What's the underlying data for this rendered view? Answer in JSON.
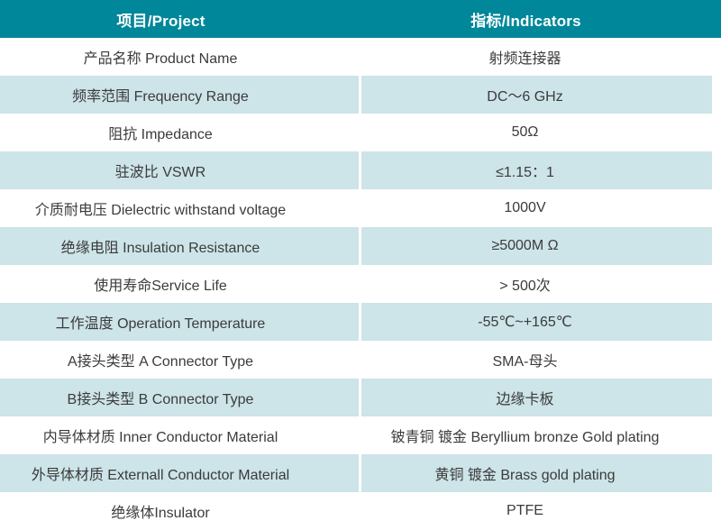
{
  "table": {
    "header": {
      "project": "项目/Project",
      "indicators": "指标/Indicators"
    },
    "rows": [
      {
        "project": "产品名称 Product Name",
        "indicator": "射频连接器"
      },
      {
        "project": "频率范围 Frequency Range",
        "indicator": "DC～6 GHz"
      },
      {
        "project": "阻抗 Impedance",
        "indicator": "50Ω"
      },
      {
        "project": "驻波比 VSWR",
        "indicator": "≤1.15：1"
      },
      {
        "project": "介质耐电压 Dielectric withstand voltage",
        "indicator": "1000V"
      },
      {
        "project": "绝缘电阻 Insulation Resistance",
        "indicator": "≥5000M Ω"
      },
      {
        "project": "使用寿命Service Life",
        "indicator": "> 500次"
      },
      {
        "project": "工作温度 Operation Temperature",
        "indicator": "-55℃~+165℃"
      },
      {
        "project": "A接头类型 A Connector Type",
        "indicator": "SMA-母头"
      },
      {
        "project": "B接头类型 B Connector Type",
        "indicator": "边缘卡板"
      },
      {
        "project": "内导体材质 Inner Conductor Material",
        "indicator": "铍青铜 镀金 Beryllium bronze Gold plating"
      },
      {
        "project": "外导体材质 Externall Conductor Material",
        "indicator": "黄铜 镀金 Brass gold plating"
      },
      {
        "project": "绝缘体Insulator",
        "indicator": "PTFE"
      }
    ],
    "colors": {
      "header_bg": "#00879a",
      "header_text": "#ffffff",
      "alt_row_bg": "#cde4e8",
      "row_bg": "#ffffff",
      "body_text": "#3b3b3b"
    }
  }
}
